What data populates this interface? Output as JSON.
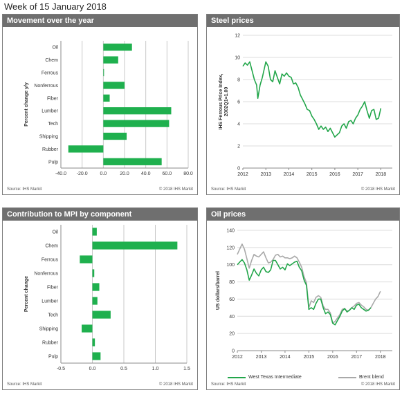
{
  "page_title": "Week of 15 January 2018",
  "colors": {
    "bar": "#1fb04e",
    "wti": "#22a64a",
    "brent": "#a9a9a9",
    "header": "#6f6f6f",
    "grid": "#c8c8c8"
  },
  "panels": [
    {
      "title": "Movement over the year",
      "source": "Source: IHS Markit",
      "copyright": "© 2018 IHS Markit"
    },
    {
      "title": "Steel prices",
      "source": "Source: IHS Markit",
      "copyright": "© 2018 IHS Markit"
    },
    {
      "title": "Contribution  to MPI by component",
      "source": "Source: IHS Markit",
      "copyright": "© 2018 IHS Markit"
    },
    {
      "title": "Oil  prices",
      "source": "Source: IHS Markit",
      "copyright": "© 2018 IHS Markit"
    }
  ],
  "chart_data": [
    {
      "type": "bar",
      "orientation": "horizontal",
      "categories": [
        "Oil",
        "Chem",
        "Ferrous",
        "Nonferrous",
        "Fiber",
        "Lumber",
        "Tech",
        "Shipping",
        "Rubber",
        "Pulp"
      ],
      "values": [
        27,
        14,
        0.5,
        20,
        6,
        64,
        62,
        22,
        -33,
        55
      ],
      "xlim": [
        -40,
        80
      ],
      "xticks": [
        "-40.0",
        "-20.0",
        "0.0",
        "20.0",
        "40.0",
        "60.0",
        "80.0"
      ],
      "ylabel": "Percent change y/y"
    },
    {
      "type": "line",
      "ylabel": "IHS Ferrous Price Index,\n2002Q1=1.00",
      "ylim": [
        0,
        12
      ],
      "yticks": [
        "0",
        "2",
        "4",
        "6",
        "8",
        "10",
        "12"
      ],
      "xlim": [
        2012,
        2018.5
      ],
      "xticks": [
        "2012",
        "2013",
        "2014",
        "2015",
        "2016",
        "2017",
        "2018"
      ],
      "series": [
        {
          "x": [
            2012.0,
            2012.1,
            2012.2,
            2012.3,
            2012.4,
            2012.5,
            2012.6,
            2012.65,
            2012.75,
            2012.85,
            2013.0,
            2013.1,
            2013.2,
            2013.3,
            2013.4,
            2013.5,
            2013.6,
            2013.7,
            2013.8,
            2013.9,
            2014.0,
            2014.1,
            2014.2,
            2014.3,
            2014.4,
            2014.5,
            2014.6,
            2014.7,
            2014.8,
            2014.9,
            2015.0,
            2015.1,
            2015.2,
            2015.3,
            2015.4,
            2015.5,
            2015.6,
            2015.7,
            2015.8,
            2015.9,
            2016.0,
            2016.1,
            2016.2,
            2016.3,
            2016.4,
            2016.5,
            2016.6,
            2016.7,
            2016.8,
            2016.9,
            2017.0,
            2017.1,
            2017.2,
            2017.3,
            2017.4,
            2017.5,
            2017.6,
            2017.7,
            2017.8,
            2017.9,
            2018.0
          ],
          "y": [
            9.2,
            9.5,
            9.3,
            9.6,
            8.8,
            8.0,
            7.5,
            6.3,
            7.5,
            8.2,
            9.6,
            9.2,
            8.0,
            7.8,
            8.8,
            8.2,
            7.6,
            8.5,
            8.3,
            8.6,
            8.3,
            8.2,
            7.6,
            7.7,
            7.3,
            6.6,
            6.2,
            5.8,
            5.3,
            5.2,
            4.7,
            4.4,
            4.0,
            3.5,
            3.8,
            3.5,
            3.7,
            3.3,
            3.6,
            3.2,
            2.8,
            3.0,
            3.2,
            3.8,
            4.0,
            3.6,
            4.2,
            4.3,
            4.0,
            4.5,
            4.8,
            5.3,
            5.6,
            6.0,
            5.2,
            4.5,
            5.2,
            5.3,
            4.4,
            4.5,
            5.4
          ]
        }
      ]
    },
    {
      "type": "bar",
      "orientation": "horizontal",
      "categories": [
        "Oil",
        "Chem",
        "Ferrous",
        "Nonferrous",
        "Fiber",
        "Lumber",
        "Tech",
        "Shipping",
        "Rubber",
        "Pulp"
      ],
      "values": [
        0.07,
        1.35,
        -0.2,
        0.03,
        0.11,
        0.08,
        0.29,
        -0.17,
        0.04,
        0.13
      ],
      "xlim": [
        -0.5,
        1.5
      ],
      "xticks": [
        "-0.5",
        "0.0",
        "0.5",
        "1.0",
        "1.5"
      ],
      "ylabel": "Percent change"
    },
    {
      "type": "line",
      "ylabel": "US dollars/barrel",
      "ylim": [
        0,
        140
      ],
      "yticks": [
        "0",
        "20",
        "40",
        "60",
        "80",
        "100",
        "120",
        "140"
      ],
      "xlim": [
        2012,
        2018.5
      ],
      "xticks": [
        "2012",
        "2013",
        "2014",
        "2015",
        "2016",
        "2017",
        "2018"
      ],
      "series": [
        {
          "name": "West Texas Intermediate",
          "x": [
            2012.0,
            2012.1,
            2012.2,
            2012.3,
            2012.4,
            2012.5,
            2012.6,
            2012.7,
            2012.8,
            2012.9,
            2013.0,
            2013.1,
            2013.2,
            2013.3,
            2013.4,
            2013.5,
            2013.6,
            2013.7,
            2013.8,
            2013.9,
            2014.0,
            2014.1,
            2014.2,
            2014.3,
            2014.4,
            2014.5,
            2014.6,
            2014.7,
            2014.8,
            2014.9,
            2015.0,
            2015.1,
            2015.2,
            2015.3,
            2015.4,
            2015.5,
            2015.6,
            2015.7,
            2015.8,
            2015.9,
            2016.0,
            2016.1,
            2016.2,
            2016.3,
            2016.4,
            2016.5,
            2016.6,
            2016.7,
            2016.8,
            2016.9,
            2017.0,
            2017.1,
            2017.2,
            2017.3,
            2017.4,
            2017.5,
            2017.6
          ],
          "y": [
            100,
            103,
            106,
            102,
            94,
            82,
            88,
            95,
            90,
            87,
            94,
            97,
            92,
            91,
            94,
            105,
            105,
            100,
            95,
            97,
            94,
            101,
            99,
            101,
            103,
            104,
            97,
            93,
            82,
            76,
            48,
            50,
            48,
            55,
            60,
            60,
            50,
            43,
            45,
            42,
            32,
            30,
            35,
            40,
            46,
            49,
            45,
            47,
            50,
            48,
            53,
            54,
            50,
            48,
            46,
            47,
            50
          ]
        },
        {
          "name": "Brent blend",
          "x": [
            2012.0,
            2012.1,
            2012.2,
            2012.3,
            2012.4,
            2012.5,
            2012.6,
            2012.7,
            2012.8,
            2012.9,
            2013.0,
            2013.1,
            2013.2,
            2013.3,
            2013.4,
            2013.5,
            2013.6,
            2013.7,
            2013.8,
            2013.9,
            2014.0,
            2014.1,
            2014.2,
            2014.3,
            2014.4,
            2014.5,
            2014.6,
            2014.7,
            2014.8,
            2014.9,
            2015.0,
            2015.1,
            2015.2,
            2015.3,
            2015.4,
            2015.5,
            2015.6,
            2015.7,
            2015.8,
            2015.9,
            2016.0,
            2016.1,
            2016.2,
            2016.3,
            2016.4,
            2016.5,
            2016.6,
            2016.7,
            2016.8,
            2016.9,
            2017.0,
            2017.1,
            2017.2,
            2017.3,
            2017.4,
            2017.5,
            2017.6,
            2017.7,
            2017.8,
            2017.9,
            2018.0
          ],
          "y": [
            112,
            118,
            124,
            118,
            107,
            96,
            105,
            112,
            110,
            109,
            112,
            115,
            108,
            102,
            103,
            106,
            111,
            112,
            109,
            110,
            108,
            108,
            107,
            108,
            110,
            108,
            103,
            97,
            86,
            79,
            50,
            58,
            56,
            62,
            64,
            62,
            52,
            48,
            48,
            44,
            32,
            34,
            38,
            42,
            48,
            49,
            46,
            47,
            50,
            52,
            55,
            56,
            53,
            51,
            48,
            47,
            50,
            55,
            60,
            63,
            69
          ]
        }
      ],
      "legend": "bottom"
    }
  ]
}
